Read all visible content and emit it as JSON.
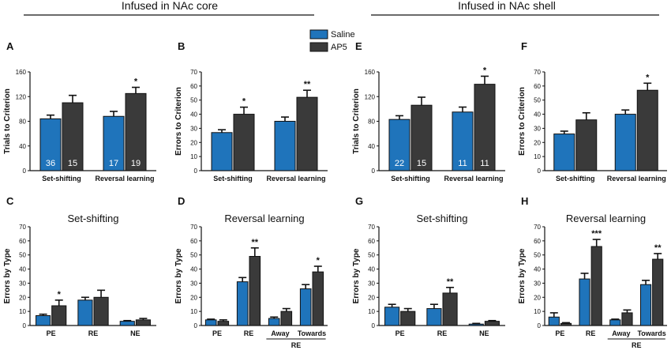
{
  "headers": {
    "core": "Infused in NAc core",
    "shell": "Infused in NAc shell"
  },
  "legend": [
    {
      "name": "Saline",
      "color": "#1f74bb"
    },
    {
      "name": "AP5",
      "color": "#3a3a3a"
    }
  ],
  "chart_data": [
    {
      "id": "A",
      "type": "bar",
      "title": "",
      "ylabel": "Trials to Criterion",
      "ylim": [
        0,
        160
      ],
      "yticks": [
        0,
        40,
        80,
        120,
        160
      ],
      "categories": [
        "Set-shifting",
        "Reversal learning"
      ],
      "series": [
        {
          "name": "Saline",
          "values": [
            84,
            88
          ],
          "errors": [
            6,
            8
          ],
          "n": [
            "36",
            "17"
          ]
        },
        {
          "name": "AP5",
          "values": [
            110,
            125
          ],
          "errors": [
            12,
            10
          ],
          "n": [
            "15",
            "19"
          ]
        }
      ],
      "significance": [
        {
          "category": "Reversal learning",
          "label": "*"
        }
      ]
    },
    {
      "id": "B",
      "type": "bar",
      "title": "",
      "ylabel": "Errors to Criterion",
      "ylim": [
        0,
        70
      ],
      "yticks": [
        0,
        10,
        20,
        30,
        40,
        50,
        60,
        70
      ],
      "categories": [
        "Set-shifting",
        "Reversal learning"
      ],
      "series": [
        {
          "name": "Saline",
          "values": [
            27,
            35
          ],
          "errors": [
            2,
            3
          ]
        },
        {
          "name": "AP5",
          "values": [
            40,
            52
          ],
          "errors": [
            5,
            5
          ]
        }
      ],
      "significance": [
        {
          "category": "Set-shifting",
          "label": "*"
        },
        {
          "category": "Reversal learning",
          "label": "**"
        }
      ]
    },
    {
      "id": "E",
      "type": "bar",
      "title": "",
      "ylabel": "Trials to Criterion",
      "ylim": [
        0,
        160
      ],
      "yticks": [
        0,
        40,
        80,
        120,
        160
      ],
      "categories": [
        "Set-shifting",
        "Reversal learning"
      ],
      "series": [
        {
          "name": "Saline",
          "values": [
            83,
            95
          ],
          "errors": [
            6,
            8
          ],
          "n": [
            "22",
            "11"
          ]
        },
        {
          "name": "AP5",
          "values": [
            106,
            140
          ],
          "errors": [
            13,
            13
          ],
          "n": [
            "15",
            "11"
          ]
        }
      ],
      "significance": [
        {
          "category": "Reversal learning",
          "label": "*"
        }
      ]
    },
    {
      "id": "F",
      "type": "bar",
      "title": "",
      "ylabel": "Errors to Criterion",
      "ylim": [
        0,
        70
      ],
      "yticks": [
        0,
        10,
        20,
        30,
        40,
        50,
        60,
        70
      ],
      "categories": [
        "Set-shifting",
        "Reversal learning"
      ],
      "series": [
        {
          "name": "Saline",
          "values": [
            26,
            40
          ],
          "errors": [
            2,
            3
          ]
        },
        {
          "name": "AP5",
          "values": [
            36,
            57
          ],
          "errors": [
            5,
            5
          ]
        }
      ],
      "significance": [
        {
          "category": "Reversal learning",
          "label": "*"
        }
      ]
    },
    {
      "id": "C",
      "type": "bar",
      "title": "Set-shifting",
      "ylabel": "Errors by Type",
      "ylim": [
        0,
        70
      ],
      "yticks": [
        0,
        10,
        20,
        30,
        40,
        50,
        60,
        70
      ],
      "categories": [
        "PE",
        "RE",
        "NE"
      ],
      "series": [
        {
          "name": "Saline",
          "values": [
            7,
            18,
            3
          ],
          "errors": [
            1,
            2,
            0.5
          ]
        },
        {
          "name": "AP5",
          "values": [
            14,
            20,
            4
          ],
          "errors": [
            4,
            5,
            1
          ]
        }
      ],
      "significance": [
        {
          "category": "PE",
          "label": "*"
        }
      ]
    },
    {
      "id": "D",
      "type": "bar",
      "title": "Reversal learning",
      "ylabel": "Errors by Type",
      "ylim": [
        0,
        70
      ],
      "yticks": [
        0,
        10,
        20,
        30,
        40,
        50,
        60,
        70
      ],
      "categories": [
        "PE",
        "RE",
        "Away",
        "Towards"
      ],
      "group_label": {
        "text": "RE",
        "categories": [
          "Away",
          "Towards"
        ]
      },
      "series": [
        {
          "name": "Saline",
          "values": [
            4,
            31,
            5,
            26
          ],
          "errors": [
            0.5,
            3,
            1,
            3
          ]
        },
        {
          "name": "AP5",
          "values": [
            3,
            49,
            10,
            38
          ],
          "errors": [
            1,
            6,
            2,
            4
          ]
        }
      ],
      "significance": [
        {
          "category": "RE",
          "label": "**"
        },
        {
          "category": "Towards",
          "label": "*"
        }
      ]
    },
    {
      "id": "G",
      "type": "bar",
      "title": "Set-shifting",
      "ylabel": "Errors by Type",
      "ylim": [
        0,
        70
      ],
      "yticks": [
        0,
        10,
        20,
        30,
        40,
        50,
        60,
        70
      ],
      "categories": [
        "PE",
        "RE",
        "NE"
      ],
      "series": [
        {
          "name": "Saline",
          "values": [
            13,
            12,
            1
          ],
          "errors": [
            2,
            3,
            0.5
          ]
        },
        {
          "name": "AP5",
          "values": [
            10,
            23,
            3
          ],
          "errors": [
            2,
            4,
            0.5
          ]
        }
      ],
      "significance": [
        {
          "category": "RE",
          "label": "**"
        }
      ]
    },
    {
      "id": "H",
      "type": "bar",
      "title": "Reversal learning",
      "ylabel": "Errors by Type",
      "ylim": [
        0,
        70
      ],
      "yticks": [
        0,
        10,
        20,
        30,
        40,
        50,
        60,
        70
      ],
      "categories": [
        "PE",
        "RE",
        "Away",
        "Towards"
      ],
      "group_label": {
        "text": "RE",
        "categories": [
          "Away",
          "Towards"
        ]
      },
      "series": [
        {
          "name": "Saline",
          "values": [
            6,
            33,
            4,
            29
          ],
          "errors": [
            3,
            4,
            0.5,
            3
          ]
        },
        {
          "name": "AP5",
          "values": [
            1.5,
            56,
            9,
            47
          ],
          "errors": [
            0.5,
            5,
            2,
            4
          ]
        }
      ],
      "significance": [
        {
          "category": "RE",
          "label": "***"
        },
        {
          "category": "Towards",
          "label": "**"
        }
      ]
    }
  ]
}
